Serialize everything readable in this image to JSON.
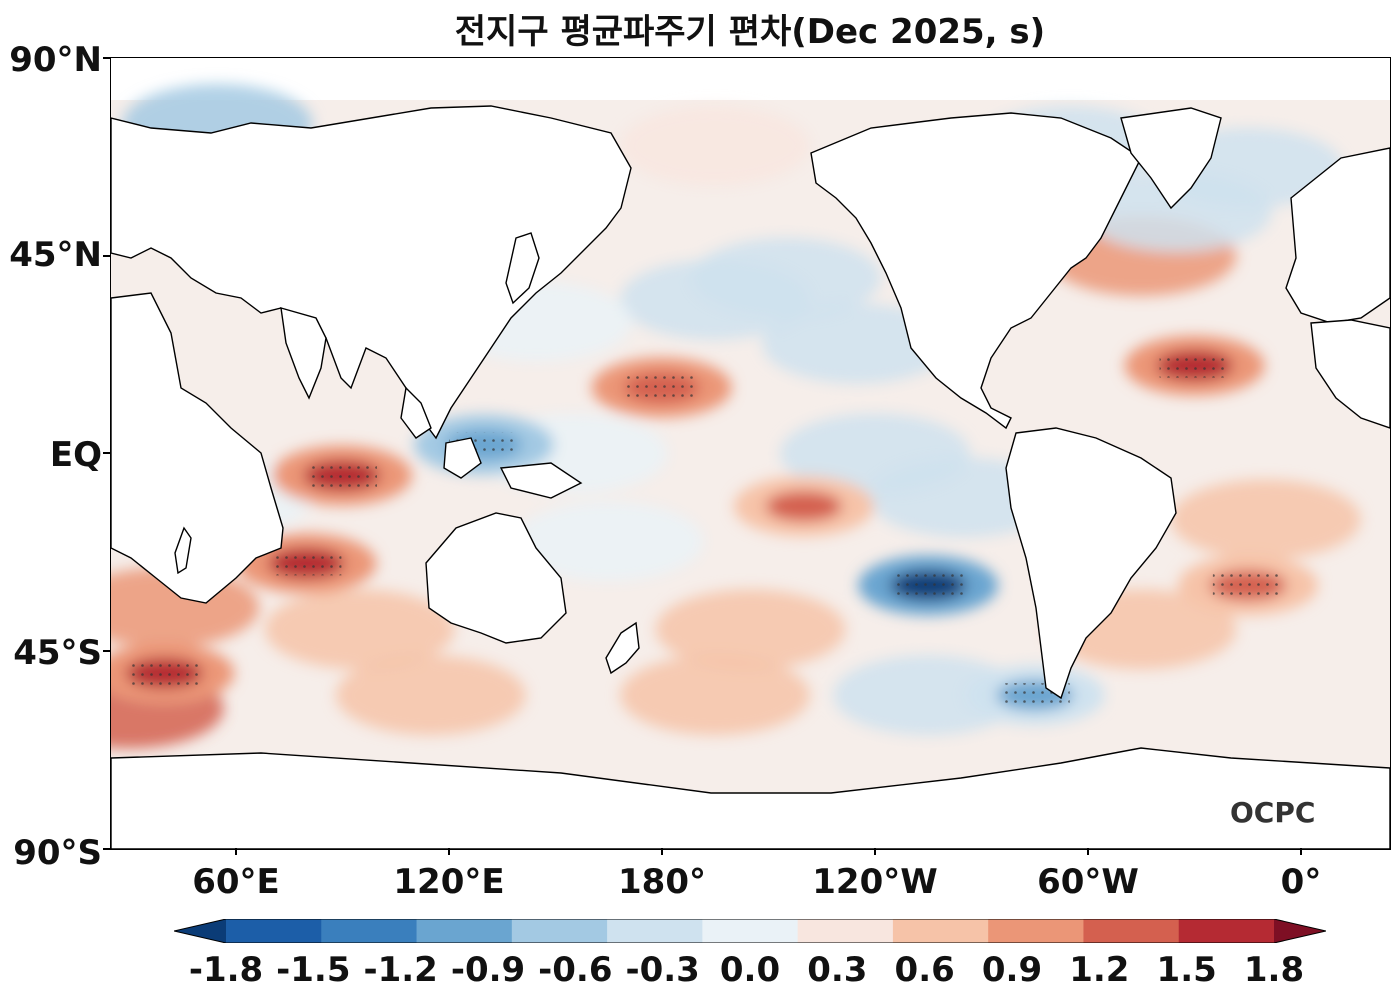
{
  "title": "전지구 평균파주기 편차(Dec 2025, s)",
  "y_axis": [
    "90°N",
    "45°N",
    "EQ",
    "45°S",
    "90°S"
  ],
  "x_axis": [
    "60°E",
    "120°E",
    "180°",
    "120°W",
    "60°W",
    "0°"
  ],
  "colorbar": {
    "labels": [
      "-1.8",
      "-1.5",
      "-1.2",
      "-0.9",
      "-0.6",
      "-0.3",
      "0.0",
      "0.3",
      "0.6",
      "0.9",
      "1.2",
      "1.5",
      "1.8"
    ],
    "colors": [
      "#0b3c77",
      "#1c5ea8",
      "#3a7fbd",
      "#6aa5d0",
      "#a3c9e3",
      "#cfe2ef",
      "#eaf2f7",
      "#f8e6df",
      "#f6c3a8",
      "#eb9677",
      "#d4604f",
      "#b52a33",
      "#7e0f24"
    ]
  },
  "logo": "OCPC",
  "chart_data": {
    "type": "heatmap",
    "title": "전지구 평균파주기 편차(Dec 2025, s)",
    "units": "s",
    "variable": "mean wave period anomaly",
    "x_range": [
      "30°E",
      "390°E (30°E)"
    ],
    "y_range": [
      "90°S",
      "90°N"
    ],
    "levels": [
      -1.8,
      -1.5,
      -1.2,
      -0.9,
      -0.6,
      -0.3,
      0.0,
      0.3,
      0.6,
      0.9,
      1.2,
      1.5,
      1.8
    ],
    "features": [
      {
        "region": "Southeast Pacific",
        "lon": -100,
        "lat": -30,
        "value": -1.8
      },
      {
        "region": "Western tropical Pacific",
        "lon": 135,
        "lat": 2,
        "value": -1.2
      },
      {
        "region": "Southern Ocean south of South America",
        "lon": -70,
        "lat": -55,
        "value": -1.0
      },
      {
        "region": "Eastern Indian Ocean",
        "lon": 95,
        "lat": -5,
        "value": 1.3
      },
      {
        "region": "South Indian Ocean",
        "lon": 85,
        "lat": -25,
        "value": 1.3
      },
      {
        "region": "Central North Pacific",
        "lon": -175,
        "lat": 15,
        "value": 1.1
      },
      {
        "region": "South-central Pacific",
        "lon": -135,
        "lat": -12,
        "value": 0.9
      },
      {
        "region": "Eastern North Atlantic",
        "lon": -25,
        "lat": 20,
        "value": 1.2
      },
      {
        "region": "South Atlantic",
        "lon": -10,
        "lat": -30,
        "value": 1.0
      },
      {
        "region": "Hudson Bay",
        "lon": -85,
        "lat": 60,
        "value": 1.0
      },
      {
        "region": "Southwest Indian Ocean",
        "lon": 45,
        "lat": -50,
        "value": 1.2
      }
    ]
  }
}
